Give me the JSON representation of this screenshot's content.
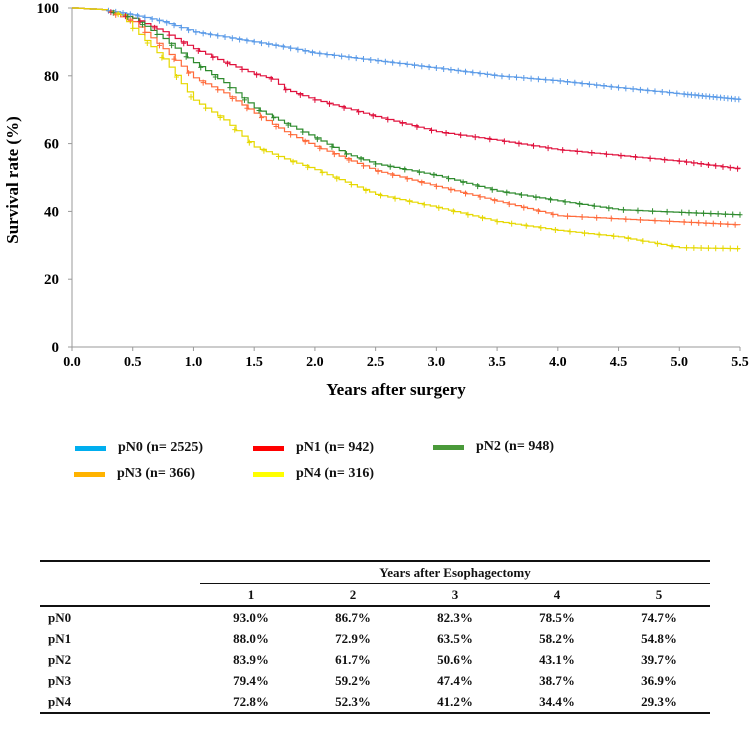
{
  "chart_data": {
    "type": "line",
    "title": "",
    "xlabel": "Years after surgery",
    "ylabel": "Survival rate (%)",
    "xlim": [
      0,
      5.5
    ],
    "ylim": [
      0,
      100
    ],
    "x_ticks": [
      "0.0",
      "0.5",
      "1.0",
      "1.5",
      "2.0",
      "2.5",
      "3.0",
      "3.5",
      "4.0",
      "4.5",
      "5.0",
      "5.5"
    ],
    "y_ticks": [
      "0",
      "20",
      "40",
      "60",
      "80",
      "100"
    ],
    "grid": false,
    "legend_placement": "below",
    "series": [
      {
        "name": "pN0 (n= 2525)",
        "color": "#5b9be8",
        "legend_color": "#00aeef",
        "x": [
          0,
          0.25,
          0.5,
          0.75,
          1,
          1.25,
          1.5,
          1.75,
          2,
          2.5,
          3,
          3.5,
          4,
          4.5,
          5,
          5.5
        ],
        "y": [
          100,
          99.5,
          98,
          96,
          93,
          91.5,
          90,
          88.5,
          86.7,
          84.5,
          82.3,
          80,
          78.5,
          76.5,
          74.7,
          73
        ]
      },
      {
        "name": "pN1 (n= 942)",
        "color": "#e0103c",
        "legend_color": "#ff0000",
        "x": [
          0,
          0.25,
          0.5,
          0.75,
          1,
          1.25,
          1.5,
          1.65,
          1.75,
          2,
          2.5,
          3,
          3.5,
          4,
          4.5,
          5,
          5.5
        ],
        "y": [
          100,
          99.5,
          97,
          93,
          88,
          84,
          80.5,
          79,
          76,
          72.9,
          68,
          63.5,
          61,
          58.2,
          56.5,
          54.8,
          52.5
        ]
      },
      {
        "name": "pN2 (n= 948)",
        "color": "#2e8b2e",
        "legend_color": "#4a9a3a",
        "x": [
          0,
          0.25,
          0.5,
          0.75,
          1,
          1.25,
          1.5,
          1.75,
          2,
          2.25,
          2.5,
          3,
          3.5,
          4,
          4.5,
          5,
          5.5
        ],
        "y": [
          100,
          99.5,
          97,
          91,
          83.9,
          78,
          70.5,
          66,
          61.7,
          57,
          54,
          50.6,
          46,
          43.1,
          40.5,
          39.7,
          39
        ]
      },
      {
        "name": "pN3 (n= 366)",
        "color": "#ff6a3a",
        "legend_color": "#ffb300",
        "x": [
          0,
          0.25,
          0.5,
          0.75,
          1,
          1.25,
          1.5,
          1.75,
          2,
          2.5,
          3,
          3.5,
          4,
          4.5,
          5,
          5.5
        ],
        "y": [
          100,
          99.5,
          96,
          88,
          79.4,
          75,
          69,
          63.5,
          59.2,
          52,
          47.4,
          43,
          38.7,
          37.8,
          36.9,
          36
        ]
      },
      {
        "name": "pN4 (n= 316)",
        "color": "#e6d800",
        "legend_color": "#ffff00",
        "x": [
          0,
          0.25,
          0.4,
          0.5,
          0.75,
          1,
          1.25,
          1.5,
          1.75,
          2,
          2.5,
          3,
          3.5,
          4,
          4.5,
          5,
          5.5
        ],
        "y": [
          100,
          99.5,
          98,
          94,
          85,
          72.8,
          67,
          59,
          55.5,
          52.3,
          45,
          41.2,
          37,
          34.4,
          32.5,
          29.3,
          29
        ]
      }
    ]
  },
  "table": {
    "group_header": "Years after Esophagectomy",
    "columns": [
      "1",
      "2",
      "3",
      "4",
      "5"
    ],
    "rows": [
      {
        "label": "pN0",
        "values": [
          "93.0%",
          "86.7%",
          "82.3%",
          "78.5%",
          "74.7%"
        ]
      },
      {
        "label": "pN1",
        "values": [
          "88.0%",
          "72.9%",
          "63.5%",
          "58.2%",
          "54.8%"
        ]
      },
      {
        "label": "pN2",
        "values": [
          "83.9%",
          "61.7%",
          "50.6%",
          "43.1%",
          "39.7%"
        ]
      },
      {
        "label": "pN3",
        "values": [
          "79.4%",
          "59.2%",
          "47.4%",
          "38.7%",
          "36.9%"
        ]
      },
      {
        "label": "pN4",
        "values": [
          "72.8%",
          "52.3%",
          "41.2%",
          "34.4%",
          "29.3%"
        ]
      }
    ]
  }
}
